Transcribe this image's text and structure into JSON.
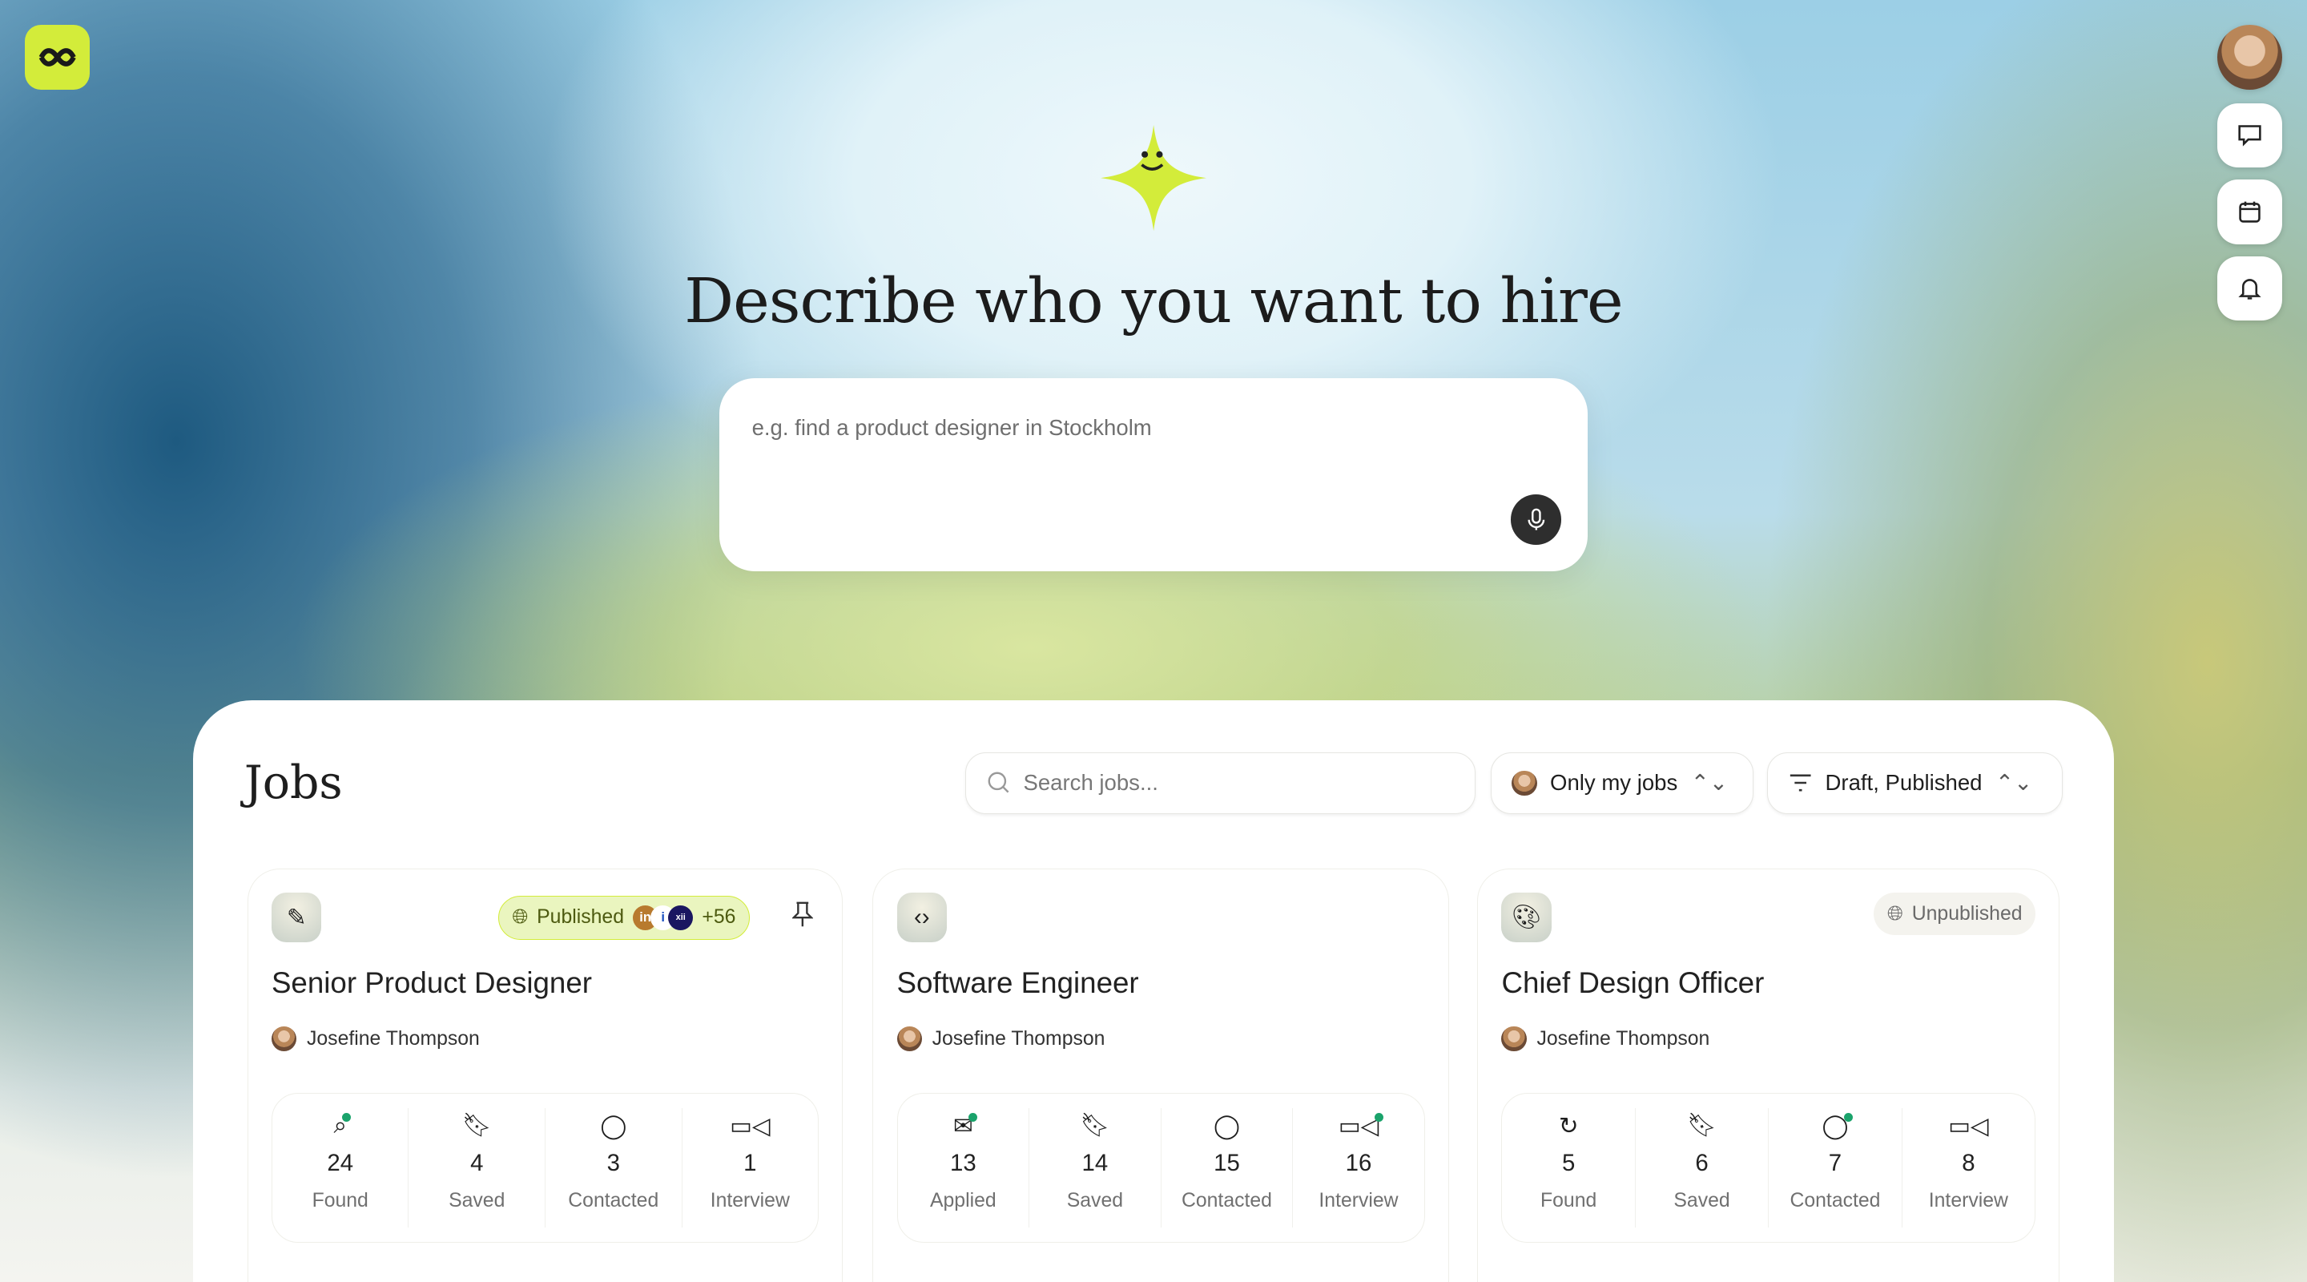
{
  "header": {
    "title": "Describe who you want to hire",
    "prompt_placeholder": "e.g. find a product designer in Stockholm"
  },
  "side_actions": [
    "messages",
    "calendar",
    "notifications"
  ],
  "jobs": {
    "title": "Jobs",
    "search_placeholder": "Search jobs...",
    "owner_filter": "Only my jobs",
    "status_filter": "Draft, Published",
    "cards": [
      {
        "title": "Senior Product Designer",
        "icon": "paintbrush-icon",
        "owner": "Josefine Thompson",
        "status": "Published",
        "sources": [
          "in",
          "i",
          "xii"
        ],
        "more_sources": "+56",
        "pinned": true,
        "stats": [
          {
            "value": "24",
            "label": "Found",
            "dot": true
          },
          {
            "value": "4",
            "label": "Saved"
          },
          {
            "value": "3",
            "label": "Contacted"
          },
          {
            "value": "1",
            "label": "Interview"
          }
        ]
      },
      {
        "title": "Software Engineer",
        "icon": "code-icon",
        "owner": "Josefine Thompson",
        "stats": [
          {
            "value": "13",
            "label": "Applied",
            "dot": true
          },
          {
            "value": "14",
            "label": "Saved"
          },
          {
            "value": "15",
            "label": "Contacted"
          },
          {
            "value": "16",
            "label": "Interview",
            "dot": true
          }
        ]
      },
      {
        "title": "Chief Design Officer",
        "icon": "palette-icon",
        "owner": "Josefine Thompson",
        "status": "Unpublished",
        "stats": [
          {
            "value": "5",
            "label": "Found"
          },
          {
            "value": "6",
            "label": "Saved"
          },
          {
            "value": "7",
            "label": "Contacted",
            "dot": true
          },
          {
            "value": "8",
            "label": "Interview"
          }
        ]
      }
    ]
  },
  "colors": {
    "accent": "#d3ec3a",
    "success": "#1aa36b",
    "badge_bg": "#eaf5bf"
  }
}
